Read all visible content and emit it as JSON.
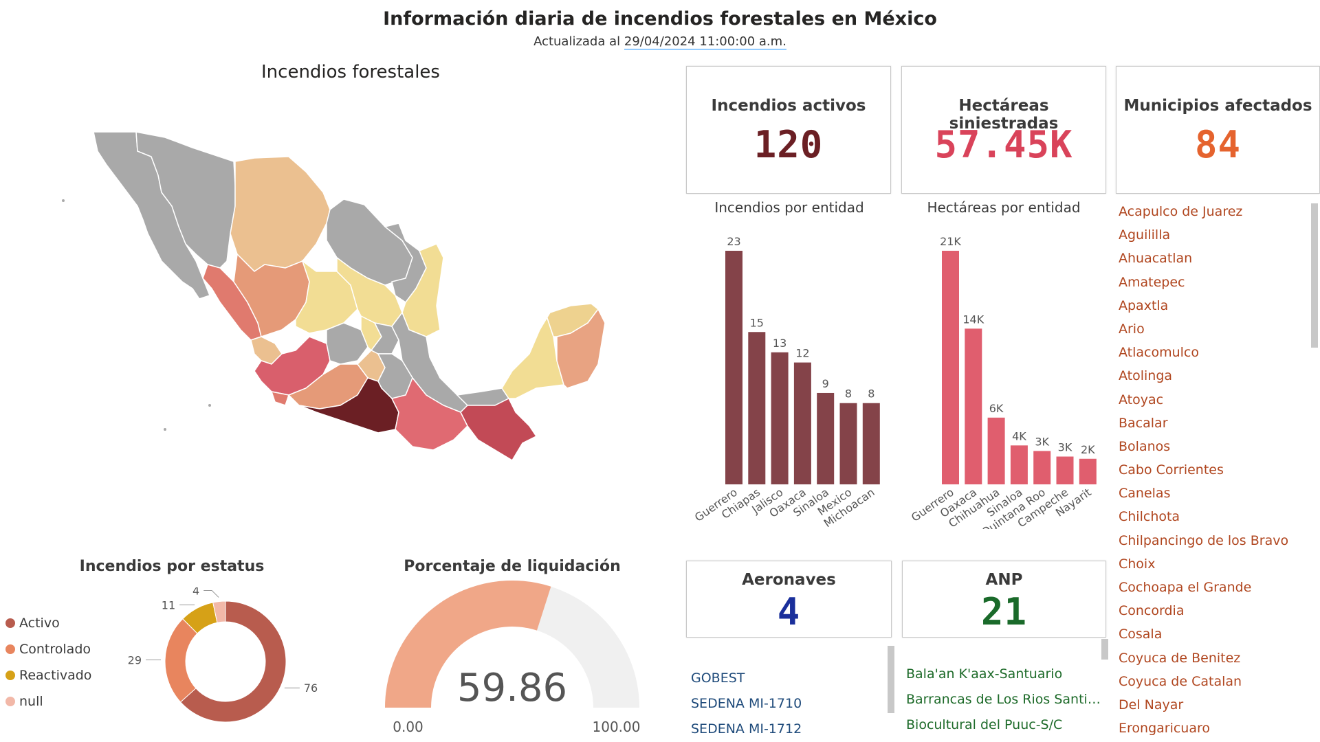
{
  "header": {
    "title": "Información diaria de incendios forestales en México",
    "subtitle_prefix": "Actualizada al ",
    "subtitle_date": "29/04/2024 11:00:00 a.m."
  },
  "map": {
    "title": "Incendios forestales"
  },
  "kpis": {
    "activos": {
      "label": "Incendios activos",
      "value": "120",
      "color": "#6b1f24"
    },
    "hectareas": {
      "label": "Hectáreas siniestradas",
      "value": "57.45K",
      "color": "#d9435a"
    },
    "municipios": {
      "label": "Municipios afectados",
      "value": "84",
      "color": "#e5632e"
    },
    "aeronaves": {
      "label": "Aeronaves",
      "value": "4",
      "color": "#1a2f9b"
    },
    "anp": {
      "label": "ANP",
      "value": "21",
      "color": "#1a6a2a"
    }
  },
  "municipios": [
    "Acapulco de Juarez",
    "Aguililla",
    "Ahuacatlan",
    "Amatepec",
    "Apaxtla",
    "Ario",
    "Atlacomulco",
    "Atolinga",
    "Atoyac",
    "Bacalar",
    "Bolanos",
    "Cabo Corrientes",
    "Canelas",
    "Chilchota",
    "Chilpancingo de los Bravo",
    "Choix",
    "Cochoapa el Grande",
    "Concordia",
    "Cosala",
    "Coyuca de Benitez",
    "Coyuca de Catalan",
    "Del Nayar",
    "Erongaricuaro"
  ],
  "aeronaves_list": [
    "GOBEST",
    "SEDENA MI-1710",
    "SEDENA MI-1712"
  ],
  "anp_list": [
    "Bala'an K'aax-Santuario",
    "Barrancas de Los Rios Santiago...",
    "Biocultural del Puuc-S/C"
  ],
  "chart_data": [
    {
      "type": "bar",
      "title": "Incendios por entidad",
      "categories": [
        "Guerrero",
        "Chiapas",
        "Jalisco",
        "Oaxaca",
        "Sinaloa",
        "Mexico",
        "Michoacan"
      ],
      "values": [
        23,
        15,
        13,
        12,
        9,
        8,
        8
      ],
      "value_labels": [
        "23",
        "15",
        "13",
        "12",
        "9",
        "8",
        "8"
      ],
      "ylim": [
        0,
        23
      ],
      "color": "#844349"
    },
    {
      "type": "bar",
      "title": "Hectáreas por entidad",
      "categories": [
        "Guerrero",
        "Oaxaca",
        "Chihuahua",
        "Sinaloa",
        "Quintana Roo",
        "Campeche",
        "Nayarit"
      ],
      "values": [
        21000,
        14000,
        6000,
        3500,
        3000,
        2500,
        2300
      ],
      "value_labels": [
        "21K",
        "14K",
        "6K",
        "4K",
        "3K",
        "3K",
        "2K"
      ],
      "ylim": [
        0,
        21000
      ],
      "color": "#e05e6e"
    },
    {
      "type": "pie",
      "title": "Incendios por estatus",
      "categories": [
        "Activo",
        "Controlado",
        "Reactivado",
        "null"
      ],
      "values": [
        76,
        29,
        11,
        4
      ],
      "colors": [
        "#b85c4e",
        "#e8855e",
        "#d6a117",
        "#f2b8a8"
      ],
      "legend": "left"
    },
    {
      "type": "gauge",
      "title": "Porcentaje de liquidación",
      "value": 59.86,
      "value_label": "59.86",
      "min_label": "0.00",
      "max_label": "100.00",
      "range": [
        0,
        100
      ],
      "fill_color": "#f0a788",
      "track_color": "#f0f0f0"
    }
  ]
}
